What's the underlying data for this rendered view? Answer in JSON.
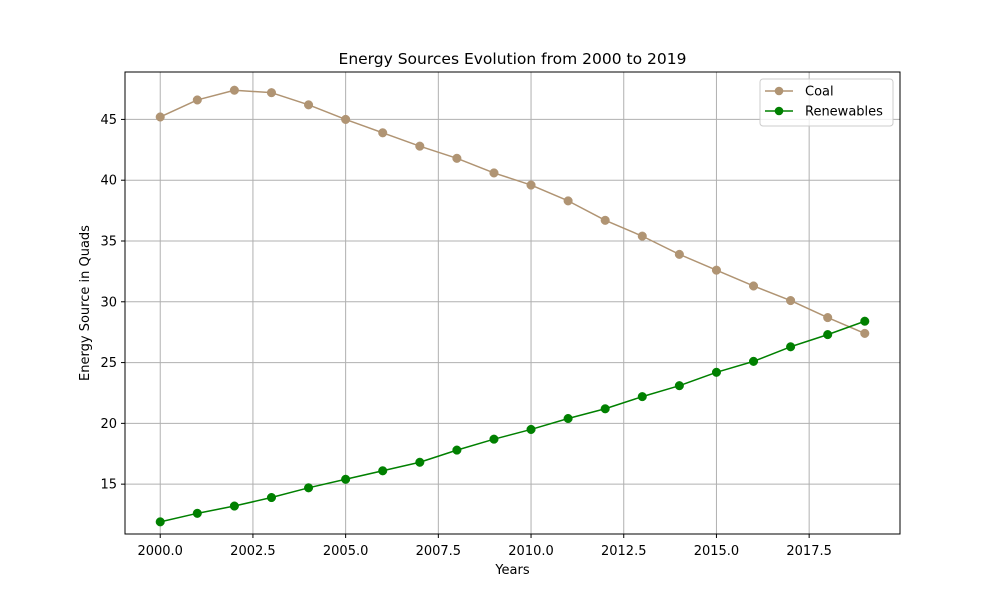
{
  "chart_data": {
    "type": "line",
    "title": "Energy Sources Evolution from 2000 to 2019",
    "xlabel": "Years",
    "ylabel": "Energy Source in Quads",
    "x": [
      2000,
      2001,
      2002,
      2003,
      2004,
      2005,
      2006,
      2007,
      2008,
      2009,
      2010,
      2011,
      2012,
      2013,
      2014,
      2015,
      2016,
      2017,
      2018,
      2019
    ],
    "xlim": [
      1999.05,
      2019.95
    ],
    "ylim": [
      10.9,
      48.9
    ],
    "xticks": [
      2000.0,
      2002.5,
      2005.0,
      2007.5,
      2010.0,
      2012.5,
      2015.0,
      2017.5
    ],
    "xtick_labels": [
      "2000.0",
      "2002.5",
      "2005.0",
      "2007.5",
      "2010.0",
      "2012.5",
      "2015.0",
      "2017.5"
    ],
    "yticks": [
      15,
      20,
      25,
      30,
      35,
      40,
      45
    ],
    "ytick_labels": [
      "15",
      "20",
      "25",
      "30",
      "35",
      "40",
      "45"
    ],
    "grid": true,
    "legend_position": "top-right",
    "series": [
      {
        "name": "Coal",
        "color": "#b09473",
        "marker": "circle",
        "values": [
          45.2,
          46.6,
          47.4,
          47.2,
          46.2,
          45.0,
          43.9,
          42.8,
          41.8,
          40.6,
          39.6,
          38.3,
          36.7,
          35.4,
          33.9,
          32.6,
          31.3,
          30.1,
          28.7,
          27.4
        ]
      },
      {
        "name": "Renewables",
        "color": "#008000",
        "marker": "circle",
        "values": [
          11.9,
          12.6,
          13.2,
          13.9,
          14.7,
          15.4,
          16.1,
          16.8,
          17.8,
          18.7,
          19.5,
          20.4,
          21.2,
          22.2,
          23.1,
          24.2,
          25.1,
          26.3,
          27.3,
          28.4
        ]
      }
    ]
  }
}
